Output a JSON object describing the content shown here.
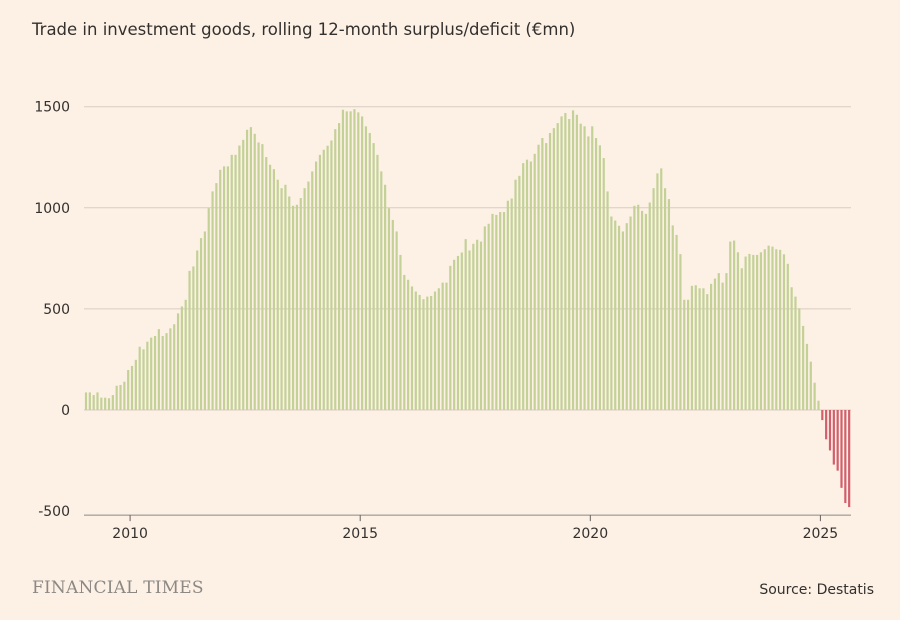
{
  "title": "Trade in investment goods, rolling 12-month surplus/deficit (€mn)",
  "footer": {
    "brand": "FINANCIAL TIMES",
    "source": "Source: Destatis"
  },
  "colors": {
    "background": "#fdf1e6",
    "surplus": "#c3d197",
    "deficit": "#d2606c",
    "grid": "#d9ccc0"
  },
  "chart_data": {
    "type": "bar",
    "title": "Trade in investment goods, rolling 12-month surplus/deficit (€mn)",
    "xlabel": "",
    "ylabel": "",
    "ylim": [
      -500,
      1600
    ],
    "yticks": [
      "1500",
      "1000",
      "500",
      "0",
      "-500"
    ],
    "xticks": [
      "2010",
      "2015",
      "2020",
      "2025"
    ],
    "grid": true,
    "frequency": "monthly",
    "x_first": "2009-01",
    "x_last": "2025-08",
    "values": [
      87,
      87,
      74,
      87,
      61,
      61,
      58,
      74,
      120,
      124,
      140,
      198,
      218,
      248,
      313,
      300,
      338,
      358,
      366,
      400,
      366,
      380,
      404,
      424,
      478,
      512,
      545,
      688,
      710,
      789,
      850,
      883,
      998,
      1081,
      1122,
      1188,
      1205,
      1205,
      1262,
      1262,
      1308,
      1336,
      1386,
      1399,
      1366,
      1323,
      1315,
      1251,
      1213,
      1191,
      1139,
      1097,
      1114,
      1056,
      1010,
      1015,
      1048,
      1097,
      1130,
      1180,
      1229,
      1262,
      1287,
      1307,
      1333,
      1389,
      1419,
      1485,
      1477,
      1477,
      1488,
      1472,
      1452,
      1403,
      1370,
      1320,
      1262,
      1180,
      1114,
      998,
      940,
      883,
      767,
      668,
      644,
      611,
      586,
      569,
      548,
      561,
      564,
      586,
      602,
      630,
      630,
      713,
      743,
      762,
      779,
      845,
      789,
      822,
      842,
      833,
      908,
      921,
      970,
      965,
      979,
      979,
      1035,
      1046,
      1139,
      1158,
      1221,
      1238,
      1229,
      1267,
      1312,
      1345,
      1320,
      1370,
      1394,
      1419,
      1452,
      1469,
      1439,
      1482,
      1460,
      1416,
      1403,
      1353,
      1403,
      1345,
      1309,
      1246,
      1081,
      957,
      937,
      911,
      883,
      924,
      957,
      1010,
      1015,
      985,
      970,
      1026,
      1097,
      1170,
      1195,
      1097,
      1043,
      913,
      866,
      771,
      545,
      545,
      614,
      617,
      602,
      602,
      573,
      624,
      650,
      677,
      630,
      677,
      833,
      838,
      780,
      701,
      759,
      772,
      767,
      767,
      780,
      795,
      813,
      808,
      795,
      792,
      770,
      723,
      607,
      561,
      503,
      416,
      327,
      239,
      135,
      46,
      -50,
      -145,
      -200,
      -270,
      -300,
      -385,
      -460,
      -480
    ]
  }
}
